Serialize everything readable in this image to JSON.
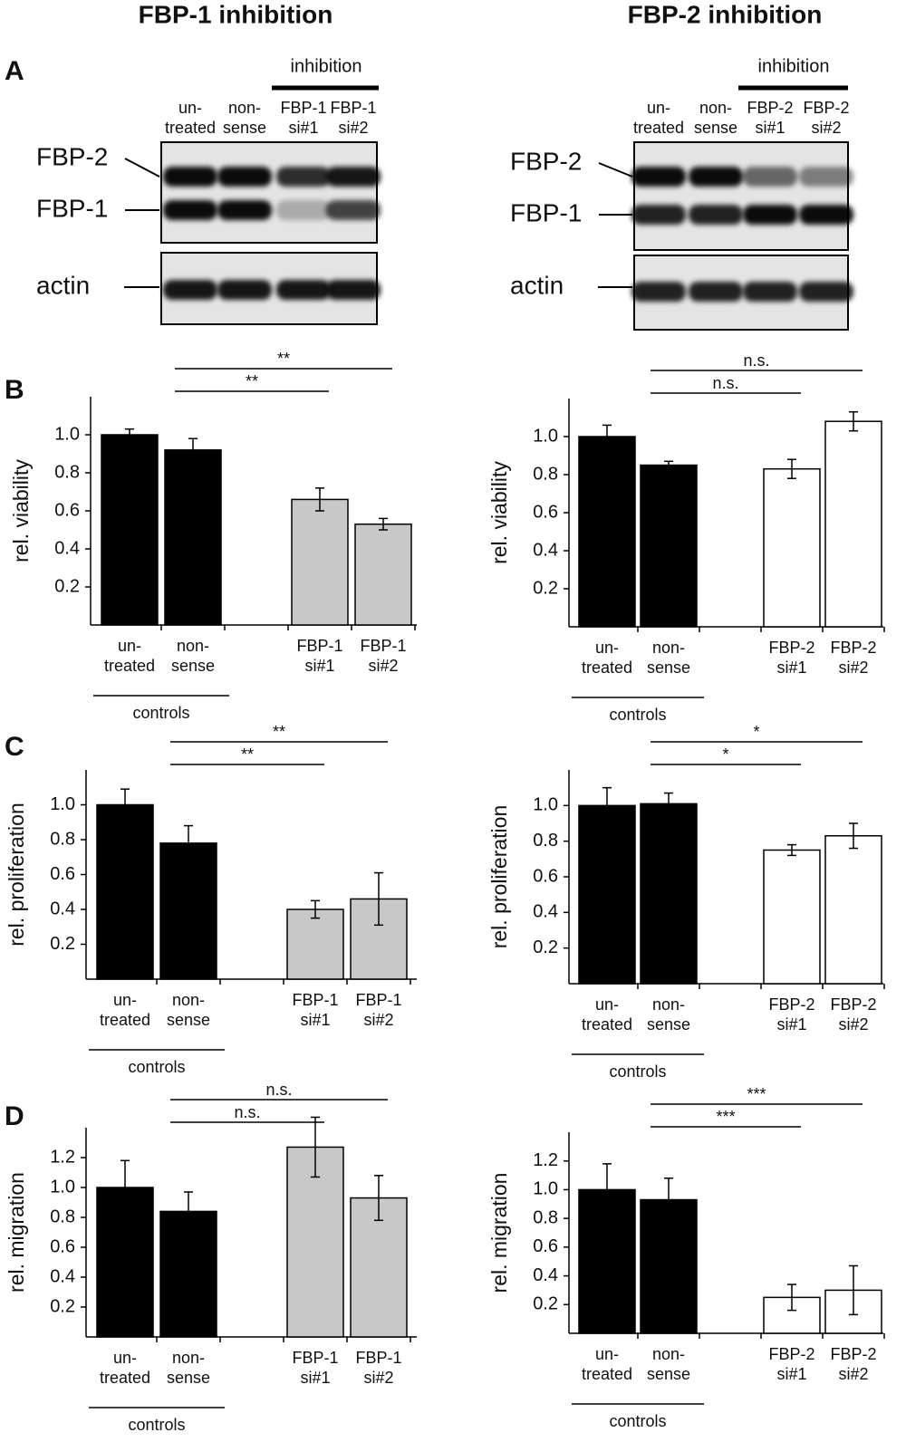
{
  "figure": {
    "columns": [
      "FBP-1 inhibition",
      "FBP-2 inhibition"
    ],
    "panels": [
      "A",
      "B",
      "C",
      "D"
    ]
  },
  "blots": [
    {
      "header": "inhibition",
      "lanes": [
        "un-\ntreated",
        "non-\nsense",
        "FBP-1\nsi#1",
        "FBP-1\nsi#2"
      ],
      "bands": [
        "FBP-2",
        "FBP-1",
        "actin"
      ]
    },
    {
      "header": "inhibition",
      "lanes": [
        "un-\ntreated",
        "non-\nsense",
        "FBP-2\nsi#1",
        "FBP-2\nsi#2"
      ],
      "bands": [
        "FBP-2",
        "FBP-1",
        "actin"
      ]
    }
  ],
  "chart_data": [
    {
      "type": "bar",
      "ylabel": "rel. viability",
      "categories": [
        "un-\ntreated",
        "non-\nsense",
        null,
        "FBP-1\nsi#1",
        "FBP-1\nsi#2"
      ],
      "values": [
        1.0,
        0.92,
        null,
        0.66,
        0.53
      ],
      "errors": [
        0.03,
        0.06,
        null,
        0.06,
        0.03
      ],
      "colors": [
        "#000000",
        "#000000",
        null,
        "#c8c8c8",
        "#c8c8c8"
      ],
      "ylim": [
        0,
        1.2
      ],
      "yticks": [
        0.2,
        0.4,
        0.6,
        0.8,
        {
          "value": 1,
          "label": "1.0"
        }
      ],
      "comparisons": [
        {
          "label": "**",
          "from": 1,
          "to": 4
        },
        {
          "label": "**",
          "from": 1,
          "to": 3
        }
      ],
      "group": {
        "label": "controls",
        "from": 0,
        "to": 1
      }
    },
    {
      "type": "bar",
      "ylabel": "rel. viability",
      "categories": [
        "un-\ntreated",
        "non-\nsense",
        null,
        "FBP-2\nsi#1",
        "FBP-2\nsi#2"
      ],
      "values": [
        1.0,
        0.85,
        null,
        0.83,
        1.08
      ],
      "errors": [
        0.06,
        0.02,
        null,
        0.05,
        0.05
      ],
      "colors": [
        "#000000",
        "#000000",
        null,
        "#ffffff",
        "#ffffff"
      ],
      "ylim": [
        0,
        1.2
      ],
      "yticks": [
        0.2,
        0.4,
        0.6,
        0.8,
        {
          "value": 1,
          "label": "1.0"
        }
      ],
      "comparisons": [
        {
          "label": "n.s.",
          "from": 1,
          "to": 4
        },
        {
          "label": "n.s.",
          "from": 1,
          "to": 3
        }
      ],
      "group": {
        "label": "controls",
        "from": 0,
        "to": 1
      }
    },
    {
      "type": "bar",
      "ylabel": "rel. proliferation",
      "categories": [
        "un-\ntreated",
        "non-\nsense",
        null,
        "FBP-1\nsi#1",
        "FBP-1\nsi#2"
      ],
      "values": [
        1.0,
        0.78,
        null,
        0.4,
        0.46
      ],
      "errors": [
        0.09,
        0.1,
        null,
        0.05,
        0.15
      ],
      "colors": [
        "#000000",
        "#000000",
        null,
        "#c8c8c8",
        "#c8c8c8"
      ],
      "ylim": [
        0,
        1.2
      ],
      "yticks": [
        0.2,
        0.4,
        0.6,
        0.8,
        {
          "value": 1,
          "label": "1.0"
        }
      ],
      "comparisons": [
        {
          "label": "**",
          "from": 1,
          "to": 4
        },
        {
          "label": "**",
          "from": 1,
          "to": 3
        }
      ],
      "group": {
        "label": "controls",
        "from": 0,
        "to": 1
      }
    },
    {
      "type": "bar",
      "ylabel": "rel. proliferation",
      "categories": [
        "un-\ntreated",
        "non-\nsense",
        null,
        "FBP-2\nsi#1",
        "FBP-2\nsi#2"
      ],
      "values": [
        1.0,
        1.01,
        null,
        0.75,
        0.83
      ],
      "errors": [
        0.1,
        0.06,
        null,
        0.03,
        0.07
      ],
      "colors": [
        "#000000",
        "#000000",
        null,
        "#ffffff",
        "#ffffff"
      ],
      "ylim": [
        0,
        1.2
      ],
      "yticks": [
        0.2,
        0.4,
        0.6,
        0.8,
        {
          "value": 1,
          "label": "1.0"
        }
      ],
      "comparisons": [
        {
          "label": "*",
          "from": 1,
          "to": 4
        },
        {
          "label": "*",
          "from": 1,
          "to": 3
        }
      ],
      "group": {
        "label": "controls",
        "from": 0,
        "to": 1
      }
    },
    {
      "type": "bar",
      "ylabel": "rel. migration",
      "categories": [
        "un-\ntreated",
        "non-\nsense",
        null,
        "FBP-1\nsi#1",
        "FBP-1\nsi#2"
      ],
      "values": [
        1.0,
        0.84,
        null,
        1.27,
        0.93
      ],
      "errors": [
        0.18,
        0.13,
        null,
        0.2,
        0.15
      ],
      "colors": [
        "#000000",
        "#000000",
        null,
        "#c8c8c8",
        "#c8c8c8"
      ],
      "ylim": [
        0,
        1.4
      ],
      "yticks": [
        0.2,
        0.4,
        0.6,
        0.8,
        {
          "value": 1,
          "label": "1.0"
        },
        1.2
      ],
      "comparisons": [
        {
          "label": "n.s.",
          "from": 1,
          "to": 4
        },
        {
          "label": "n.s.",
          "from": 1,
          "to": 3
        }
      ],
      "group": {
        "label": "controls",
        "from": 0,
        "to": 1
      }
    },
    {
      "type": "bar",
      "ylabel": "rel. migration",
      "categories": [
        "un-\ntreated",
        "non-\nsense",
        null,
        "FBP-2\nsi#1",
        "FBP-2\nsi#2"
      ],
      "values": [
        1.0,
        0.93,
        null,
        0.25,
        0.3
      ],
      "errors": [
        0.18,
        0.15,
        null,
        0.09,
        0.17
      ],
      "colors": [
        "#000000",
        "#000000",
        null,
        "#ffffff",
        "#ffffff"
      ],
      "ylim": [
        0,
        1.4
      ],
      "yticks": [
        0.2,
        0.4,
        0.6,
        0.8,
        {
          "value": 1,
          "label": "1.0"
        },
        1.2
      ],
      "comparisons": [
        {
          "label": "***",
          "from": 1,
          "to": 4
        },
        {
          "label": "***",
          "from": 1,
          "to": 3
        }
      ],
      "group": {
        "label": "controls",
        "from": 0,
        "to": 1
      }
    }
  ]
}
